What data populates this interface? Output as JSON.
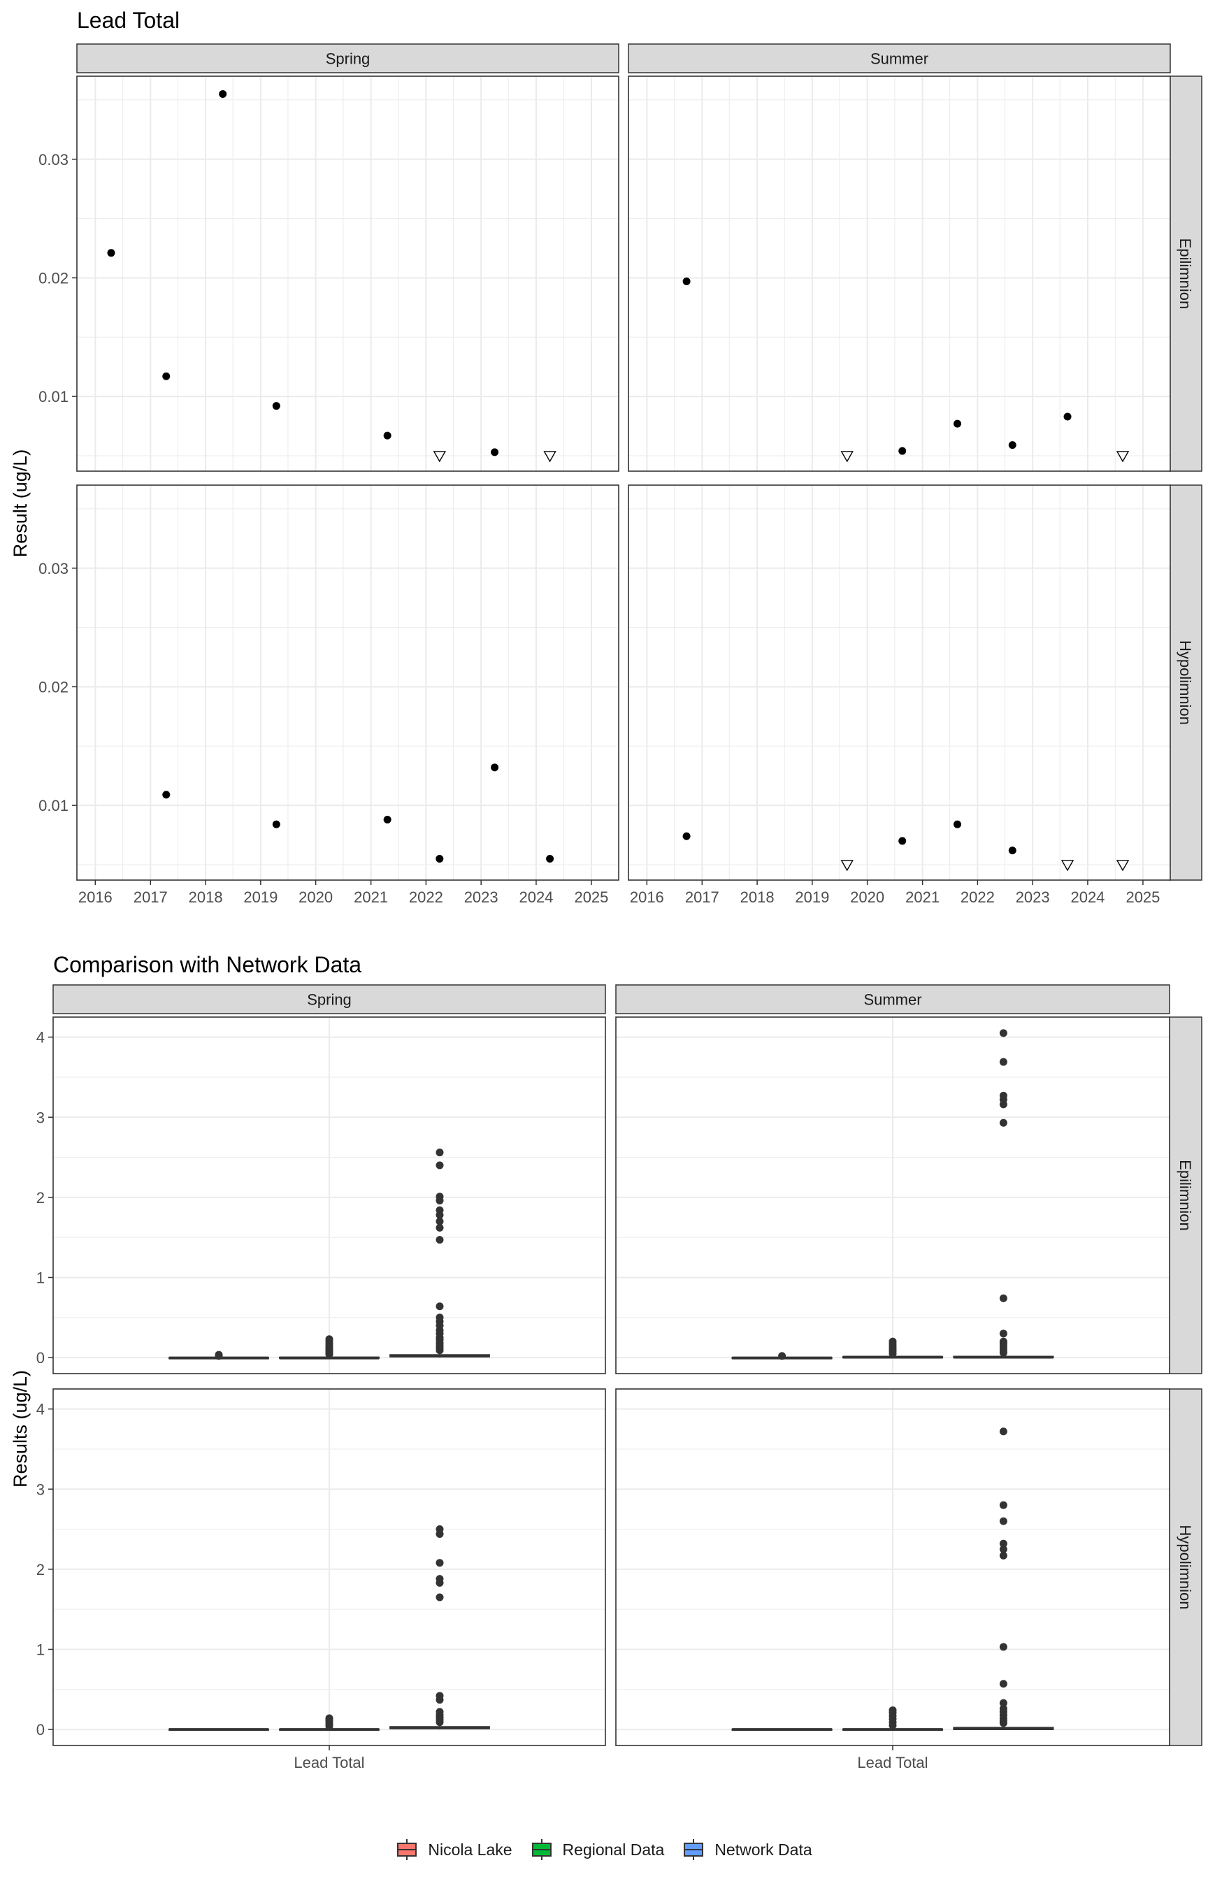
{
  "colors": {
    "nicola_lake": "#F8766D",
    "regional_data": "#00BA38",
    "network_data": "#619CFF",
    "strip_bg": "#D9D9D9",
    "panel_border": "#333333",
    "grid": "#EBEBEB"
  },
  "legend": {
    "items": [
      {
        "label": "Nicola Lake",
        "color": "#F8766D"
      },
      {
        "label": "Regional Data",
        "color": "#00BA38"
      },
      {
        "label": "Network Data",
        "color": "#619CFF"
      }
    ]
  },
  "chart_data": [
    {
      "type": "scatter",
      "title": "Lead Total",
      "xlabel": "",
      "ylabel": "Result (ug/L)",
      "x_axis": "date",
      "xlim": [
        "2015-09-01",
        "2025-07-01"
      ],
      "x_ticks": [
        "2016",
        "2017",
        "2018",
        "2019",
        "2020",
        "2021",
        "2022",
        "2023",
        "2024",
        "2025"
      ],
      "ylim": [
        0.0037,
        0.037
      ],
      "y_ticks": [
        0.01,
        0.02,
        0.03
      ],
      "y_tick_labels": [
        "0.01",
        "0.02",
        "0.03"
      ],
      "grid": true,
      "facet_columns": [
        "Spring",
        "Summer"
      ],
      "facet_rows": [
        "Epilimnion",
        "Hypolimnion"
      ],
      "shape_encoding": {
        "filled_circle": "detected",
        "open_triangle_down": "below detection limit"
      },
      "panels": [
        {
          "season": "Spring",
          "depth": "Epilimnion",
          "points": [
            {
              "date": "2016-04-15",
              "value": 0.0221,
              "shape": "circle"
            },
            {
              "date": "2017-04-15",
              "value": 0.0117,
              "shape": "circle"
            },
            {
              "date": "2018-04-25",
              "value": 0.0355,
              "shape": "circle"
            },
            {
              "date": "2019-04-15",
              "value": 0.0092,
              "shape": "circle"
            },
            {
              "date": "2021-04-20",
              "value": 0.0067,
              "shape": "circle"
            },
            {
              "date": "2022-04-01",
              "value": 0.005,
              "shape": "triangle"
            },
            {
              "date": "2023-04-01",
              "value": 0.0053,
              "shape": "circle"
            },
            {
              "date": "2024-04-01",
              "value": 0.005,
              "shape": "triangle"
            }
          ]
        },
        {
          "season": "Summer",
          "depth": "Epilimnion",
          "points": [
            {
              "date": "2016-09-20",
              "value": 0.0197,
              "shape": "circle"
            },
            {
              "date": "2019-08-20",
              "value": 0.005,
              "shape": "triangle"
            },
            {
              "date": "2020-08-20",
              "value": 0.0054,
              "shape": "circle"
            },
            {
              "date": "2021-08-20",
              "value": 0.0077,
              "shape": "circle"
            },
            {
              "date": "2022-08-20",
              "value": 0.0059,
              "shape": "circle"
            },
            {
              "date": "2023-08-20",
              "value": 0.0083,
              "shape": "circle"
            },
            {
              "date": "2024-08-20",
              "value": 0.005,
              "shape": "triangle"
            }
          ]
        },
        {
          "season": "Spring",
          "depth": "Hypolimnion",
          "points": [
            {
              "date": "2017-04-15",
              "value": 0.0109,
              "shape": "circle"
            },
            {
              "date": "2019-04-15",
              "value": 0.0084,
              "shape": "circle"
            },
            {
              "date": "2021-04-20",
              "value": 0.0088,
              "shape": "circle"
            },
            {
              "date": "2022-04-01",
              "value": 0.0055,
              "shape": "circle"
            },
            {
              "date": "2023-04-01",
              "value": 0.0132,
              "shape": "circle"
            },
            {
              "date": "2024-04-01",
              "value": 0.0055,
              "shape": "circle"
            }
          ]
        },
        {
          "season": "Summer",
          "depth": "Hypolimnion",
          "points": [
            {
              "date": "2016-09-20",
              "value": 0.0074,
              "shape": "circle"
            },
            {
              "date": "2019-08-20",
              "value": 0.005,
              "shape": "triangle"
            },
            {
              "date": "2020-08-20",
              "value": 0.007,
              "shape": "circle"
            },
            {
              "date": "2021-08-20",
              "value": 0.0084,
              "shape": "circle"
            },
            {
              "date": "2022-08-20",
              "value": 0.0062,
              "shape": "circle"
            },
            {
              "date": "2023-08-20",
              "value": 0.005,
              "shape": "triangle"
            },
            {
              "date": "2024-08-20",
              "value": 0.005,
              "shape": "triangle"
            }
          ]
        }
      ]
    },
    {
      "type": "box",
      "title": "Comparison with Network Data",
      "xlabel": "",
      "ylabel": "Results (ug/L)",
      "categories": [
        "Lead Total"
      ],
      "ylim": [
        -0.2,
        4.25
      ],
      "y_ticks": [
        0,
        1,
        2,
        3,
        4
      ],
      "y_tick_labels": [
        "0",
        "1",
        "2",
        "3",
        "4"
      ],
      "grid": true,
      "facet_columns": [
        "Spring",
        "Summer"
      ],
      "facet_rows": [
        "Epilimnion",
        "Hypolimnion"
      ],
      "legend_position": "bottom",
      "series": [
        {
          "name": "Nicola Lake",
          "color": "#F8766D"
        },
        {
          "name": "Regional Data",
          "color": "#00BA38"
        },
        {
          "name": "Network Data",
          "color": "#619CFF"
        }
      ],
      "panels": [
        {
          "season": "Spring",
          "depth": "Epilimnion",
          "boxes": [
            {
              "series": "Nicola Lake",
              "q1": -0.01,
              "median": -0.005,
              "q3": 0.0,
              "lower": -0.01,
              "upper": 0.01,
              "outliers": [
                0.02,
                0.035
              ]
            },
            {
              "series": "Regional Data",
              "q1": -0.01,
              "median": -0.005,
              "q3": 0.005,
              "lower": -0.01,
              "upper": 0.02,
              "outliers": [
                0.04,
                0.06,
                0.08,
                0.1,
                0.12,
                0.14,
                0.17,
                0.2,
                0.23
              ]
            },
            {
              "series": "Network Data",
              "q1": 0.01,
              "median": 0.02,
              "q3": 0.035,
              "lower": 0.0,
              "upper": 0.07,
              "outliers": [
                0.09,
                0.12,
                0.15,
                0.18,
                0.22,
                0.25,
                0.3,
                0.34,
                0.4,
                0.45,
                0.5,
                0.64,
                1.47,
                1.62,
                1.7,
                1.78,
                1.84,
                1.96,
                2.01,
                2.4,
                2.56
              ]
            }
          ]
        },
        {
          "season": "Summer",
          "depth": "Epilimnion",
          "boxes": [
            {
              "series": "Nicola Lake",
              "q1": -0.01,
              "median": -0.005,
              "q3": 0.0,
              "lower": -0.01,
              "upper": 0.01,
              "outliers": [
                0.02
              ]
            },
            {
              "series": "Regional Data",
              "q1": 0.0,
              "median": 0.005,
              "q3": 0.01,
              "lower": -0.005,
              "upper": 0.03,
              "outliers": [
                0.05,
                0.08,
                0.11,
                0.14,
                0.17,
                0.2
              ]
            },
            {
              "series": "Network Data",
              "q1": 0.0,
              "median": 0.005,
              "q3": 0.015,
              "lower": -0.005,
              "upper": 0.03,
              "outliers": [
                0.06,
                0.09,
                0.12,
                0.15,
                0.18,
                0.2,
                0.3,
                0.74,
                2.93,
                3.16,
                3.22,
                3.27,
                3.69,
                4.05
              ]
            }
          ]
        },
        {
          "season": "Spring",
          "depth": "Hypolimnion",
          "boxes": [
            {
              "series": "Nicola Lake",
              "q1": -0.005,
              "median": 0.0,
              "q3": 0.005,
              "lower": -0.01,
              "upper": 0.01,
              "outliers": []
            },
            {
              "series": "Regional Data",
              "q1": -0.005,
              "median": 0.0,
              "q3": 0.005,
              "lower": -0.01,
              "upper": 0.02,
              "outliers": [
                0.04,
                0.07,
                0.1,
                0.12,
                0.14
              ]
            },
            {
              "series": "Network Data",
              "q1": 0.01,
              "median": 0.02,
              "q3": 0.035,
              "lower": 0.0,
              "upper": 0.06,
              "outliers": [
                0.09,
                0.12,
                0.15,
                0.18,
                0.22,
                0.37,
                0.42,
                1.65,
                1.83,
                1.88,
                2.08,
                2.44,
                2.5
              ]
            }
          ]
        },
        {
          "season": "Summer",
          "depth": "Hypolimnion",
          "boxes": [
            {
              "series": "Nicola Lake",
              "q1": -0.005,
              "median": 0.0,
              "q3": 0.005,
              "lower": -0.01,
              "upper": 0.01,
              "outliers": []
            },
            {
              "series": "Regional Data",
              "q1": -0.005,
              "median": 0.0,
              "q3": 0.005,
              "lower": -0.01,
              "upper": 0.02,
              "outliers": [
                0.05,
                0.09,
                0.13,
                0.17,
                0.21,
                0.24
              ]
            },
            {
              "series": "Network Data",
              "q1": 0.0,
              "median": 0.01,
              "q3": 0.025,
              "lower": -0.005,
              "upper": 0.05,
              "outliers": [
                0.08,
                0.11,
                0.14,
                0.18,
                0.22,
                0.26,
                0.33,
                0.57,
                1.03,
                2.17,
                2.25,
                2.32,
                2.6,
                2.8,
                3.72
              ]
            }
          ]
        }
      ]
    }
  ]
}
